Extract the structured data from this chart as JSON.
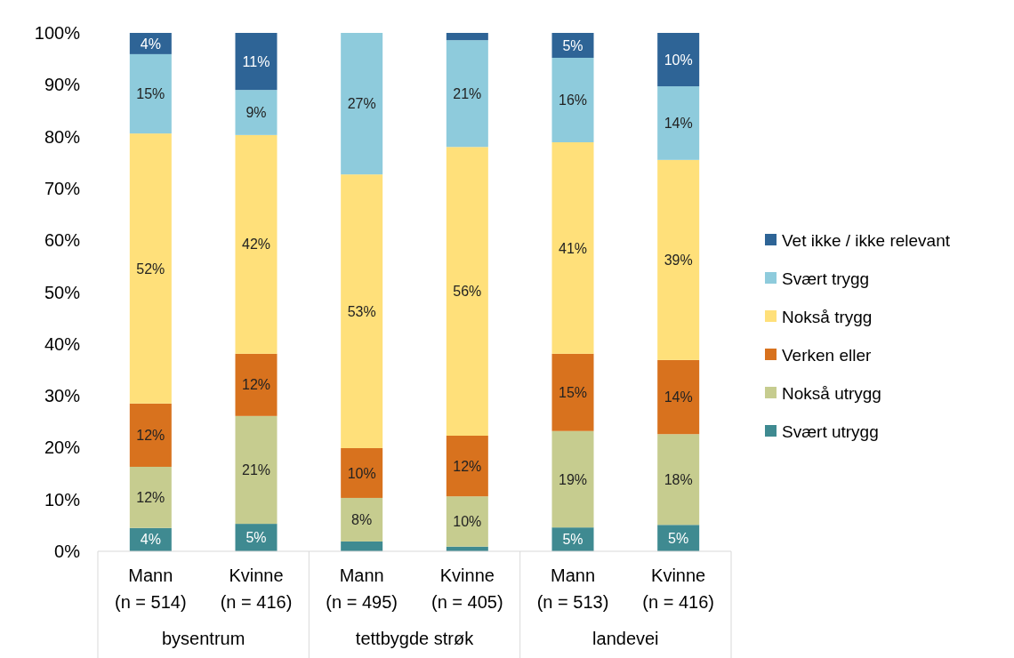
{
  "chart_data": {
    "type": "bar",
    "stacked": true,
    "data_labels": false,
    "categories": [
      "Mann\n(n = 514)",
      "Kvinne\n(n = 416)",
      "Mann\n(n = 495)",
      "Kvinne\n(n = 405)",
      "Mann\n(n = 513)",
      "Kvinne\n(n = 416)"
    ],
    "annotations": [
      "bysentrum",
      "tettbygde strøk",
      "landevei"
    ],
    "series": [
      {
        "name": "Svært utrygg",
        "color": "#3f8a91",
        "values": [
          4.5,
          5.3,
          1.9,
          0.9,
          4.6,
          5.1
        ],
        "value_labels": [
          "4%",
          "5%",
          null,
          null,
          "5%",
          "5%"
        ]
      },
      {
        "name": "Nokså utrygg",
        "color": "#c6cc8f",
        "values": [
          11.8,
          20.8,
          8.4,
          9.7,
          18.6,
          17.5
        ],
        "value_labels": [
          "12%",
          "21%",
          "8%",
          "10%",
          "19%",
          "18%"
        ]
      },
      {
        "name": "Verken eller",
        "color": "#d8721e",
        "values": [
          12.2,
          12.0,
          9.6,
          11.7,
          14.9,
          14.3
        ],
        "value_labels": [
          "12%",
          "12%",
          "10%",
          "12%",
          "15%",
          "14%"
        ]
      },
      {
        "name": "Nokså trygg",
        "color": "#ffe07a",
        "values": [
          52.1,
          42.2,
          52.8,
          55.7,
          40.8,
          38.6
        ],
        "value_labels": [
          "52%",
          "42%",
          "53%",
          "56%",
          "41%",
          "39%"
        ]
      },
      {
        "name": "Svært trygg",
        "color": "#8ecbdc",
        "values": [
          15.3,
          8.7,
          27.3,
          20.6,
          16.3,
          14.2
        ],
        "value_labels": [
          "15%",
          "9%",
          "27%",
          "21%",
          "16%",
          "14%"
        ]
      },
      {
        "name": "Vet ikke / ikke relevant",
        "color": "#2e6496",
        "values": [
          4.1,
          11.0,
          0,
          1.4,
          4.8,
          10.3
        ],
        "value_labels": [
          "4%",
          "11%",
          null,
          null,
          "5%",
          "10%"
        ]
      }
    ],
    "ylim": [
      0,
      100
    ],
    "yticks": [
      {
        "value": 0,
        "label": "0%"
      },
      {
        "value": 10,
        "label": "10%"
      },
      {
        "value": 20,
        "label": "20%"
      },
      {
        "value": 30,
        "label": "30%"
      },
      {
        "value": 40,
        "label": "40%"
      },
      {
        "value": 50,
        "label": "50%"
      },
      {
        "value": 60,
        "label": "60%"
      },
      {
        "value": 70,
        "label": "70%"
      },
      {
        "value": 80,
        "label": "80%"
      },
      {
        "value": 90,
        "label": "90%"
      },
      {
        "value": 100,
        "label": "100%"
      }
    ],
    "grid": false,
    "legend": "right"
  }
}
